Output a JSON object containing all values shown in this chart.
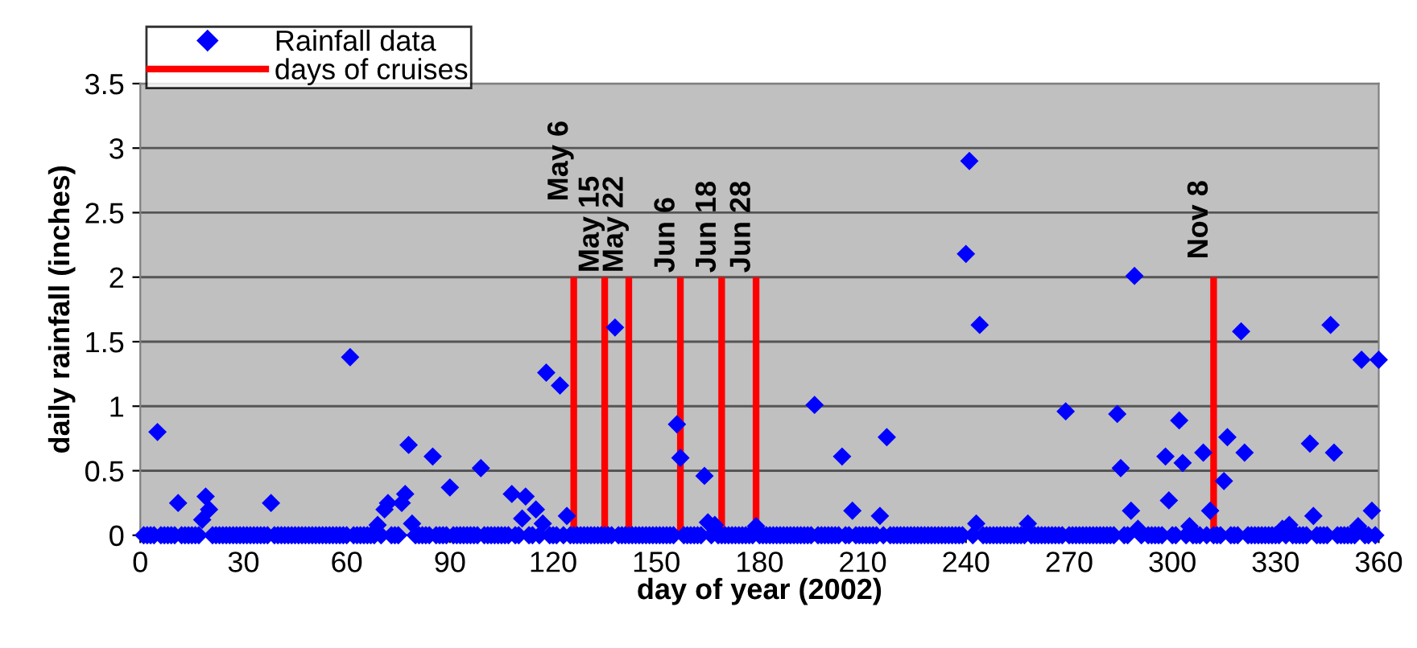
{
  "chart_data": {
    "type": "scatter",
    "xlabel": "day of year (2002)",
    "ylabel": "daily rainfall (inches)",
    "xlim": [
      0,
      360
    ],
    "xticks": [
      0,
      30,
      60,
      90,
      120,
      150,
      180,
      210,
      240,
      270,
      300,
      330,
      360
    ],
    "ylim": [
      0,
      3.5
    ],
    "yticks": [
      0,
      0.5,
      1,
      1.5,
      2,
      2.5,
      3,
      3.5
    ],
    "grid": "y",
    "legend": "top left",
    "marker": "diamond",
    "series": [
      {
        "name": "Rainfall data",
        "color": "#0000ff",
        "x": [
          1,
          2,
          3,
          4,
          5,
          6,
          7,
          8,
          9,
          10,
          11,
          12,
          13,
          14,
          15,
          16,
          17,
          18,
          19,
          20,
          21,
          22,
          23,
          24,
          25,
          26,
          27,
          28,
          29,
          30,
          31,
          32,
          33,
          34,
          35,
          36,
          37,
          38,
          39,
          40,
          41,
          42,
          43,
          44,
          45,
          46,
          47,
          48,
          49,
          50,
          51,
          52,
          53,
          54,
          55,
          56,
          57,
          58,
          59,
          60,
          61,
          62,
          63,
          64,
          65,
          66,
          67,
          68,
          69,
          70,
          71,
          72,
          73,
          74,
          75,
          76,
          77,
          78,
          79,
          80,
          81,
          82,
          83,
          84,
          85,
          86,
          87,
          88,
          89,
          90,
          91,
          92,
          93,
          94,
          95,
          96,
          97,
          98,
          99,
          100,
          101,
          102,
          103,
          104,
          105,
          106,
          107,
          108,
          109,
          110,
          111,
          112,
          113,
          114,
          115,
          116,
          117,
          118,
          119,
          120,
          121,
          122,
          123,
          124,
          125,
          126,
          127,
          128,
          129,
          130,
          131,
          132,
          133,
          134,
          135,
          136,
          137,
          138,
          139,
          140,
          141,
          142,
          143,
          144,
          145,
          146,
          147,
          148,
          149,
          150,
          151,
          152,
          153,
          154,
          155,
          156,
          157,
          158,
          159,
          160,
          161,
          162,
          163,
          164,
          165,
          166,
          167,
          168,
          169,
          170,
          171,
          172,
          173,
          174,
          175,
          176,
          177,
          178,
          179,
          180,
          181,
          182,
          183,
          184,
          185,
          186,
          187,
          188,
          189,
          190,
          191,
          192,
          193,
          194,
          195,
          196,
          197,
          198,
          199,
          200,
          201,
          202,
          203,
          204,
          205,
          206,
          207,
          208,
          209,
          210,
          211,
          212,
          213,
          214,
          215,
          216,
          217,
          218,
          219,
          220,
          221,
          222,
          223,
          224,
          225,
          226,
          227,
          228,
          229,
          230,
          231,
          232,
          233,
          234,
          235,
          236,
          237,
          238,
          239,
          240,
          241,
          242,
          243,
          244,
          245,
          246,
          247,
          248,
          249,
          250,
          251,
          252,
          253,
          254,
          255,
          256,
          257,
          258,
          259,
          260,
          261,
          262,
          263,
          264,
          265,
          266,
          267,
          268,
          269,
          270,
          271,
          272,
          273,
          274,
          275,
          276,
          277,
          278,
          279,
          280,
          281,
          282,
          283,
          284,
          285,
          286,
          287,
          288,
          289,
          290,
          291,
          292,
          293,
          294,
          295,
          296,
          297,
          298,
          299,
          300,
          301,
          302,
          303,
          304,
          305,
          306,
          307,
          308,
          309,
          310,
          311,
          312,
          313,
          314,
          315,
          316,
          317,
          318,
          319,
          320,
          321,
          322,
          323,
          324,
          325,
          326,
          327,
          328,
          329,
          330,
          331,
          332,
          333,
          334,
          335,
          336,
          337,
          338,
          339,
          340,
          341,
          342,
          343,
          344,
          345,
          346,
          347,
          348,
          349,
          350,
          351,
          352,
          353,
          354,
          355,
          356,
          357,
          358,
          359,
          360
        ],
        "values": [
          0,
          0,
          0,
          0,
          0.8,
          0,
          0,
          0,
          0,
          0,
          0.25,
          0,
          0,
          0,
          0,
          0,
          0,
          0.12,
          0.3,
          0.2,
          0,
          0,
          0,
          0,
          0,
          0,
          0,
          0,
          0,
          0,
          0,
          0,
          0,
          0,
          0,
          0,
          0,
          0.25,
          0,
          0,
          0,
          0,
          0,
          0,
          0,
          0,
          0,
          0,
          0,
          0,
          0,
          0,
          0,
          0,
          0,
          0,
          0,
          0,
          0,
          0,
          1.38,
          0,
          0,
          0,
          0,
          0,
          0,
          0,
          0.08,
          0,
          0.2,
          0.25,
          0,
          0,
          0,
          0.25,
          0.32,
          0.7,
          0.09,
          0,
          0,
          0,
          0,
          0,
          0.61,
          0,
          0,
          0,
          0,
          0.37,
          0,
          0,
          0,
          0,
          0,
          0,
          0,
          0,
          0.52,
          0,
          0,
          0,
          0,
          0,
          0,
          0,
          0,
          0.32,
          0,
          0,
          0.13,
          0.3,
          0,
          0,
          0.2,
          0,
          0.09,
          1.26,
          0,
          0,
          0,
          1.16,
          0,
          0.15,
          0,
          0,
          0,
          0,
          0,
          0,
          0,
          0,
          0,
          0,
          0,
          0,
          0,
          1.61,
          0,
          0,
          0,
          0,
          0,
          0,
          0,
          0,
          0,
          0,
          0,
          0,
          0,
          0,
          0,
          0,
          0,
          0.86,
          0.6,
          0,
          0,
          0,
          0,
          0,
          0,
          0.46,
          0.1,
          0,
          0.08,
          0,
          0,
          0,
          0,
          0,
          0,
          0,
          0,
          0,
          0,
          0,
          0.07,
          0,
          0,
          0,
          0,
          0,
          0,
          0,
          0,
          0,
          0,
          0,
          0,
          0,
          0,
          0,
          0,
          1.01,
          0,
          0,
          0,
          0,
          0,
          0,
          0,
          0.61,
          0,
          0,
          0.19,
          0,
          0,
          0,
          0,
          0,
          0,
          0,
          0.15,
          0,
          0.76,
          0,
          0,
          0,
          0,
          0,
          0,
          0,
          0,
          0,
          0,
          0,
          0,
          0,
          0,
          0,
          0,
          0,
          0,
          0,
          0,
          0,
          0,
          2.18,
          2.9,
          0,
          0.09,
          1.63,
          0,
          0,
          0,
          0,
          0,
          0,
          0,
          0,
          0,
          0,
          0,
          0,
          0,
          0.09,
          0,
          0,
          0,
          0,
          0,
          0,
          0,
          0,
          0,
          0,
          0.96,
          0,
          0,
          0,
          0,
          0,
          0,
          0,
          0,
          0,
          0,
          0,
          0,
          0,
          0,
          0.94,
          0.52,
          0,
          0,
          0.19,
          2.01,
          0.05,
          0,
          null,
          0,
          0,
          0,
          0,
          0,
          0.61,
          0.27,
          0,
          0,
          0.89,
          0.56,
          0,
          0.07,
          0,
          0,
          0,
          0.64,
          0,
          0.19,
          0,
          0,
          0,
          0.42,
          0.76,
          0,
          0,
          0,
          1.58,
          0.64,
          0,
          0,
          0,
          0,
          0,
          0,
          0,
          0,
          0,
          0,
          0.05,
          0,
          0.08,
          0,
          0,
          0,
          0,
          0,
          0.71,
          0.15,
          0,
          0,
          0,
          0,
          1.63,
          0.64,
          0,
          0,
          0,
          0,
          0,
          0,
          0.07,
          1.36,
          0,
          0,
          0.19,
          0,
          1.36
        ]
      },
      {
        "name": "days of cruises",
        "color": "#ff0000",
        "type": "bar",
        "x": [
          126,
          135,
          142,
          157,
          169,
          179,
          312
        ],
        "values": [
          2,
          2,
          2,
          2,
          2,
          2,
          2
        ],
        "value_labels": [
          "May 6",
          "May 15",
          "May 22",
          "Jun 6",
          "Jun 18",
          "Jun 28",
          "Nov 8"
        ]
      }
    ]
  }
}
